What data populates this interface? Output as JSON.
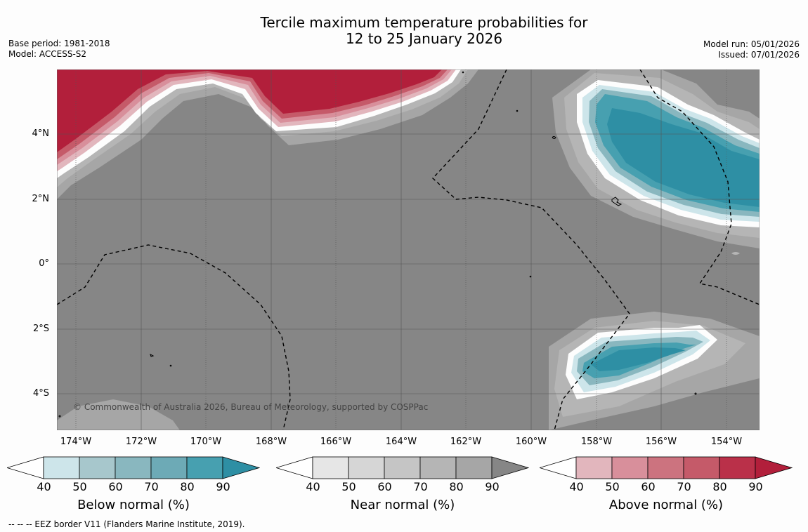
{
  "title": {
    "line1": "Tercile maximum temperature probabilities for",
    "line2": "12 to 25 January 2026"
  },
  "meta_left": {
    "base_period": "Base period: 1981-2018",
    "model": "Model: ACCESS-S2"
  },
  "meta_right": {
    "model_run": "Model run: 05/01/2026",
    "issued": "Issued: 07/01/2026"
  },
  "map": {
    "y_ticks": [
      "4°N",
      "2°N",
      "0°",
      "2°S",
      "4°S"
    ],
    "x_ticks": [
      "174°W",
      "172°W",
      "170°W",
      "168°W",
      "166°W",
      "164°W",
      "162°W",
      "160°W",
      "158°W",
      "156°W",
      "154°W"
    ],
    "copyright": "© Commonwealth of Australia 2026, Bureau of Meteorology, supported by COSPPac",
    "colors": {
      "background": "#868686",
      "below_max": "#2e8fa4",
      "above_max": "#b21f3b",
      "near_mid": "#a6a6a6"
    }
  },
  "colorbars": [
    {
      "title": "Below normal (%)",
      "labels": [
        "40",
        "50",
        "60",
        "70",
        "80",
        "90"
      ],
      "colors": [
        "#ffffff",
        "#cde5ea",
        "#a7c7cc",
        "#89b7bf",
        "#6daab6",
        "#47a0b0",
        "#2e8fa4"
      ]
    },
    {
      "title": "Near normal (%)",
      "labels": [
        "40",
        "50",
        "60",
        "70",
        "80",
        "90"
      ],
      "colors": [
        "#ffffff",
        "#e6e6e6",
        "#d6d6d6",
        "#c5c5c5",
        "#b5b5b5",
        "#a6a6a6",
        "#868686"
      ]
    },
    {
      "title": "Above normal (%)",
      "labels": [
        "40",
        "50",
        "60",
        "70",
        "80",
        "90"
      ],
      "colors": [
        "#ffffff",
        "#e2b6bd",
        "#d88f9b",
        "#cc737f",
        "#c55a69",
        "#ba3049",
        "#b21f3b"
      ]
    }
  ],
  "footer": "--  --  -- EEZ border V11 (Flanders Marine Institute, 2019)."
}
